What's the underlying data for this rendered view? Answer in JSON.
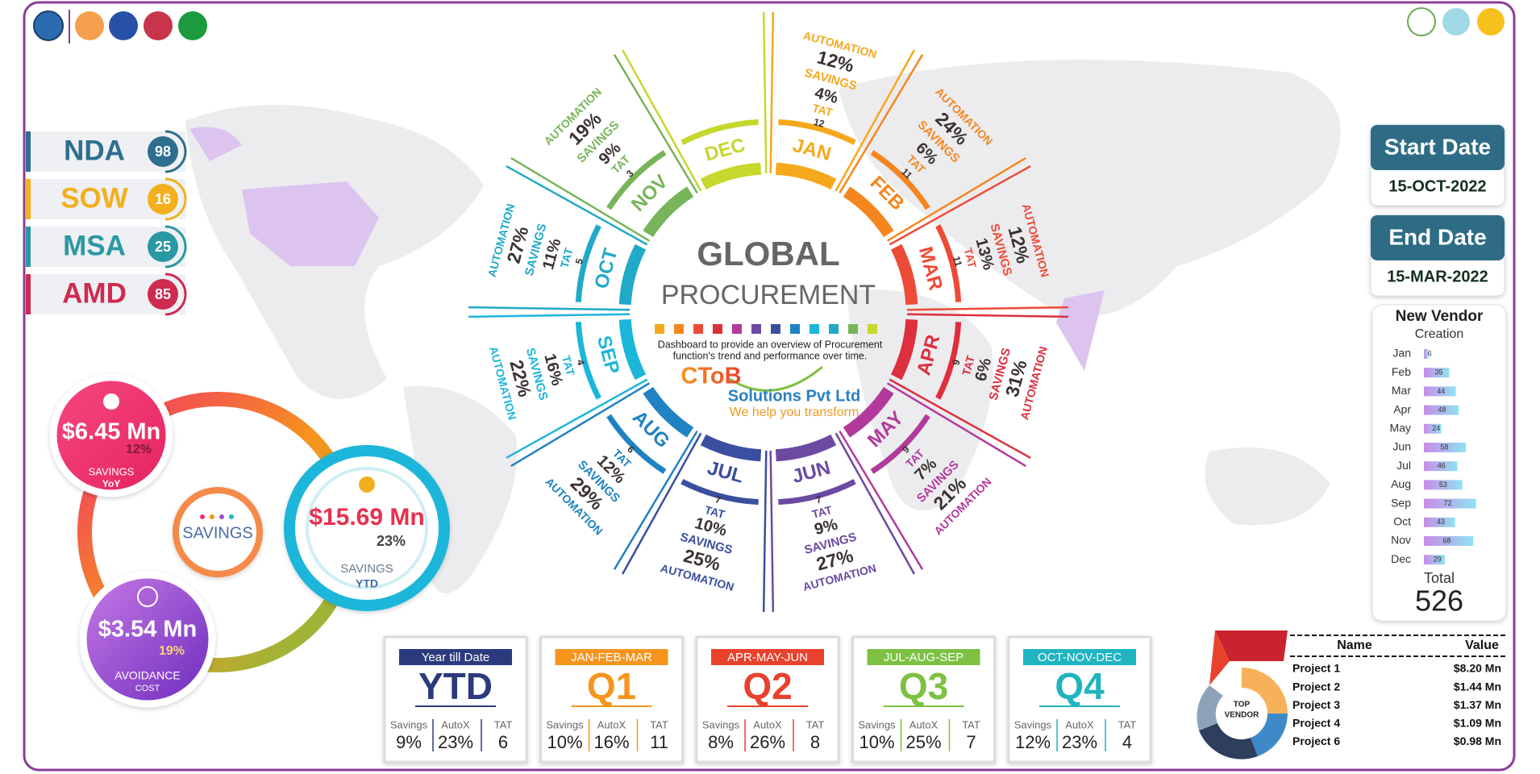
{
  "contracts": [
    {
      "label": "NDA",
      "count": 98,
      "color": "#2f6e8e"
    },
    {
      "label": "SOW",
      "count": 16,
      "color": "#f2b01e"
    },
    {
      "label": "MSA",
      "count": 25,
      "color": "#2a98a3"
    },
    {
      "label": "AMD",
      "count": 85,
      "color": "#cf2a50"
    }
  ],
  "savings": {
    "yoy": {
      "amount": "$6.45 Mn",
      "percent": "12%",
      "label": "SAVINGS",
      "period": "YoY"
    },
    "center": "SAVINGS",
    "ytd": {
      "amount": "$15.69 Mn",
      "percent": "23%",
      "label": "SAVINGS",
      "period": "YTD"
    },
    "avoidance": {
      "amount": "$3.54 Mn",
      "percent": "19%",
      "label": "AVOIDANCE",
      "period": "COST"
    }
  },
  "wheel": {
    "title": "GLOBAL",
    "subtitle": "PROCUREMENT",
    "description": [
      "Dashboard to provide an overview of Procurement",
      "function's trend and performance over time."
    ],
    "logo": {
      "brand": "CToB",
      "company": "Solutions Pvt Ltd",
      "tagline": "We help you transform"
    },
    "metric_labels": {
      "automation": "AUTOMATION",
      "savings": "SAVINGS",
      "tat": "TAT"
    },
    "months": [
      {
        "name": "JAN",
        "color": "#f6a81c",
        "automation": "12%",
        "savings": "4%",
        "tat": 12
      },
      {
        "name": "FEB",
        "color": "#f5861f",
        "automation": "24%",
        "savings": "6%",
        "tat": 11
      },
      {
        "name": "MAR",
        "color": "#ee4b37",
        "automation": "12%",
        "savings": "13%",
        "tat": 11
      },
      {
        "name": "APR",
        "color": "#dd2f3e",
        "automation": "31%",
        "savings": "6%",
        "tat": 9
      },
      {
        "name": "MAY",
        "color": "#b23a9c",
        "automation": "21%",
        "savings": "7%",
        "tat": 9
      },
      {
        "name": "JUN",
        "color": "#6c4aa2",
        "automation": "27%",
        "savings": "9%",
        "tat": 7
      },
      {
        "name": "JUL",
        "color": "#3a4f9f",
        "automation": "25%",
        "savings": "10%",
        "tat": 7
      },
      {
        "name": "AUG",
        "color": "#1f82c2",
        "automation": "29%",
        "savings": "12%",
        "tat": 6
      },
      {
        "name": "SEP",
        "color": "#1cb6da",
        "automation": "22%",
        "savings": "16%",
        "tat": 4
      },
      {
        "name": "OCT",
        "color": "#21a9c8",
        "automation": "27%",
        "savings": "11%",
        "tat": 5
      },
      {
        "name": "NOV",
        "color": "#78b45a",
        "automation": "19%",
        "savings": "9%",
        "tat": 3
      },
      {
        "name": "DEC",
        "color": "#c6d72d"
      }
    ]
  },
  "dates": {
    "start": {
      "label": "Start Date",
      "value": "15-OCT-2022"
    },
    "end": {
      "label": "End Date",
      "value": "15-MAR-2022"
    }
  },
  "vendor_creation": {
    "title": "New Vendor",
    "subtitle": "Creation",
    "months": [
      "Jan",
      "Feb",
      "Mar",
      "Apr",
      "May",
      "Jun",
      "Jul",
      "Aug",
      "Sep",
      "Oct",
      "Nov",
      "Dec"
    ],
    "values": [
      6,
      35,
      44,
      48,
      24,
      58,
      46,
      53,
      72,
      43,
      68,
      29
    ],
    "total_label": "Total",
    "total": 526
  },
  "quarters": {
    "metric_labels": [
      "Savings",
      "AutoX",
      "TAT"
    ],
    "cards": [
      {
        "header": "Year till Date",
        "label": "YTD",
        "color": "#2b3a7c",
        "savings": "9%",
        "autox": "23%",
        "tat": 6
      },
      {
        "header": "JAN-FEB-MAR",
        "label": "Q1",
        "color": "#f6941d",
        "savings": "10%",
        "autox": "16%",
        "tat": 11
      },
      {
        "header": "APR-MAY-JUN",
        "label": "Q2",
        "color": "#e8422c",
        "savings": "8%",
        "autox": "26%",
        "tat": 8
      },
      {
        "header": "JUL-AUG-SEP",
        "label": "Q3",
        "color": "#7cc142",
        "savings": "10%",
        "autox": "25%",
        "tat": 7
      },
      {
        "header": "OCT-NOV-DEC",
        "label": "Q4",
        "color": "#1fb4c0",
        "savings": "12%",
        "autox": "23%",
        "tat": 4
      }
    ]
  },
  "top_vendor": {
    "badge": [
      "TOP",
      "VENDOR"
    ],
    "columns": [
      "Name",
      "Value"
    ],
    "rows": [
      [
        "Project 1",
        "$8.20 Mn"
      ],
      [
        "Project 2",
        "$1.44 Mn"
      ],
      [
        "Project 3",
        "$1.37 Mn"
      ],
      [
        "Project 4",
        "$1.09 Mn"
      ],
      [
        "Project 6",
        "$0.98 Mn"
      ]
    ]
  }
}
